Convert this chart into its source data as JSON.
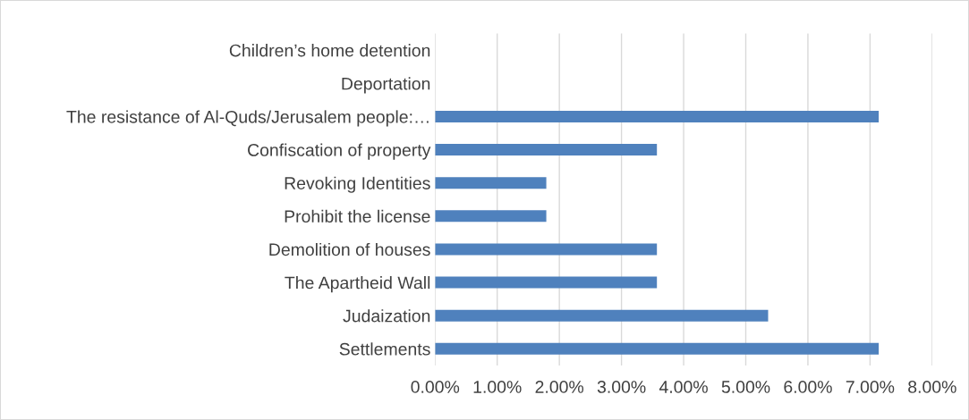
{
  "chart_data": {
    "type": "bar",
    "orientation": "horizontal",
    "categories": [
      "Children’s home detention",
      "Deportation",
      "The resistance of Al-Quds/Jerusalem people:…",
      "Confiscation of property",
      "Revoking Identities",
      "Prohibit the license",
      "Demolition of houses",
      "The Apartheid Wall",
      "Judaization",
      "Settlements"
    ],
    "values": [
      0,
      0,
      7.14,
      3.57,
      1.79,
      1.79,
      3.57,
      3.57,
      5.36,
      7.14
    ],
    "color": "#4f81bd",
    "xlim": [
      0,
      8
    ],
    "xticks": [
      {
        "value": 0,
        "label": "0.00%"
      },
      {
        "value": 1,
        "label": "1.00%"
      },
      {
        "value": 2,
        "label": "2.00%"
      },
      {
        "value": 3,
        "label": "3.00%"
      },
      {
        "value": 4,
        "label": "4.00%"
      },
      {
        "value": 5,
        "label": "5.00%"
      },
      {
        "value": 6,
        "label": "6.00%"
      },
      {
        "value": 7,
        "label": "7.00%"
      },
      {
        "value": 8,
        "label": "8.00%"
      }
    ],
    "grid": "x",
    "legend": false
  }
}
